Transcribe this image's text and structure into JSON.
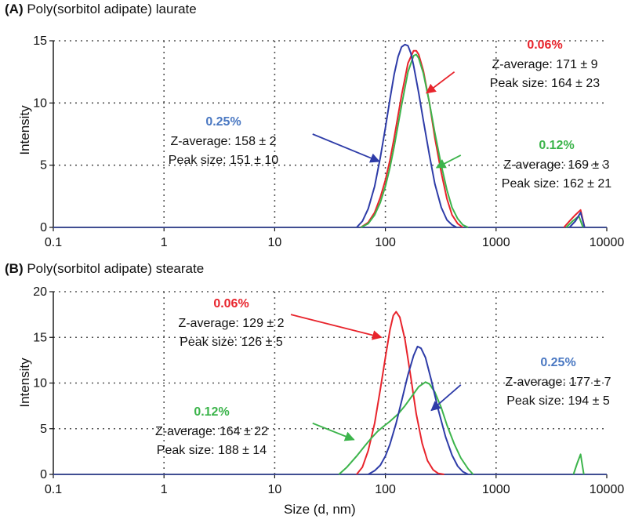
{
  "chart_data": [
    {
      "type": "line",
      "letter": "(A)",
      "title": "Poly(sorbitol adipate) laurate",
      "xlabel": "",
      "ylabel": "Intensity",
      "xscale": "log",
      "xlim": [
        0.1,
        10000
      ],
      "ylim": [
        0,
        15
      ],
      "xticks": [
        "0.1",
        "1",
        "10",
        "100",
        "1000",
        "10000"
      ],
      "yticks": [
        "0",
        "5",
        "10",
        "15"
      ],
      "grid": "dotted",
      "series": [
        {
          "name": "0.06%",
          "color": "#e8242c",
          "x": [
            60,
            70,
            80,
            90,
            100,
            110,
            120,
            140,
            160,
            180,
            190,
            200,
            220,
            250,
            280,
            320,
            360,
            400,
            450,
            500,
            4100,
            4600,
            5200,
            5800,
            6300
          ],
          "y": [
            0,
            0.4,
            1.2,
            2.4,
            3.8,
            5.4,
            7.2,
            10.6,
            13.2,
            14.2,
            14.2,
            13.9,
            12.6,
            10.0,
            7.2,
            4.4,
            2.3,
            1.0,
            0.3,
            0,
            0,
            0.5,
            1.0,
            1.4,
            0
          ]
        },
        {
          "name": "0.12%",
          "color": "#3cb44b",
          "x": [
            60,
            70,
            80,
            90,
            100,
            110,
            120,
            140,
            160,
            180,
            190,
            200,
            220,
            250,
            280,
            320,
            360,
            400,
            450,
            500,
            560,
            4300,
            4900,
            5600,
            6100
          ],
          "y": [
            0,
            0.3,
            1.0,
            2.0,
            3.3,
            4.8,
            6.5,
            9.8,
            12.5,
            13.8,
            13.9,
            13.6,
            12.4,
            10.0,
            7.6,
            5.0,
            3.0,
            1.6,
            0.7,
            0.2,
            0,
            0,
            0.5,
            0.9,
            0
          ]
        },
        {
          "name": "0.25%",
          "color": "#2e3ca8",
          "x": [
            55,
            62,
            70,
            80,
            90,
            100,
            110,
            120,
            130,
            140,
            150,
            160,
            170,
            180,
            200,
            220,
            250,
            280,
            320,
            360,
            400,
            440,
            4600,
            5200,
            5800,
            6300
          ],
          "y": [
            0,
            0.5,
            1.5,
            3.3,
            5.6,
            8.0,
            10.3,
            12.3,
            13.7,
            14.5,
            14.7,
            14.6,
            14.0,
            13.0,
            10.8,
            8.6,
            5.8,
            3.5,
            1.6,
            0.6,
            0.2,
            0,
            0,
            0.5,
            1.2,
            0
          ]
        }
      ],
      "annotations": [
        {
          "title": "0.06%",
          "color": "#e8242c",
          "lines": [
            "Z-average: 171 ± 9",
            "Peak size: 164 ± 23"
          ],
          "arrow_to_x": 235,
          "arrow_to_y": 10.8,
          "arrow_from_x": 420,
          "arrow_from_y": 12.5
        },
        {
          "title": "0.25%",
          "color": "#4a78c2",
          "arrow_color": "#2e3ca8",
          "lines": [
            "Z-average: 158 ± 2",
            "Peak size: 151 ± 10"
          ],
          "arrow_to_x": 88,
          "arrow_to_y": 5.3,
          "arrow_from_x": 22,
          "arrow_from_y": 7.5
        },
        {
          "title": "0.12%",
          "color": "#3cb44b",
          "lines": [
            "Z-average: 169 ± 3",
            "Peak size: 162 ± 21"
          ],
          "arrow_to_x": 290,
          "arrow_to_y": 4.8,
          "arrow_from_x": 480,
          "arrow_from_y": 5.8
        }
      ]
    },
    {
      "type": "line",
      "letter": "(B)",
      "title": "Poly(sorbitol adipate) stearate",
      "xlabel": "Size (d, nm)",
      "ylabel": "Intensity",
      "xscale": "log",
      "xlim": [
        0.1,
        10000
      ],
      "ylim": [
        0,
        20
      ],
      "xticks": [
        "0.1",
        "1",
        "10",
        "100",
        "1000",
        "10000"
      ],
      "yticks": [
        "0",
        "5",
        "10",
        "15",
        "20"
      ],
      "grid": "dotted",
      "series": [
        {
          "name": "0.06%",
          "color": "#e8242c",
          "x": [
            55,
            62,
            70,
            80,
            90,
            100,
            110,
            118,
            125,
            135,
            150,
            170,
            190,
            215,
            240,
            270,
            300,
            340
          ],
          "y": [
            0,
            0.8,
            2.6,
            5.6,
            9.3,
            12.8,
            15.8,
            17.4,
            17.8,
            17.2,
            14.8,
            10.6,
            6.6,
            3.4,
            1.5,
            0.5,
            0.1,
            0
          ]
        },
        {
          "name": "0.12%",
          "color": "#3cb44b",
          "x": [
            38,
            45,
            55,
            65,
            75,
            85,
            95,
            110,
            130,
            150,
            170,
            200,
            230,
            250,
            280,
            320,
            360,
            420,
            480,
            560,
            620,
            5000,
            5400,
            5800,
            6200
          ],
          "y": [
            0,
            0.8,
            2.0,
            3.1,
            4.0,
            4.7,
            5.2,
            5.8,
            6.6,
            7.5,
            8.4,
            9.6,
            10.1,
            9.9,
            9.0,
            7.3,
            5.4,
            3.3,
            1.8,
            0.6,
            0,
            0,
            1.2,
            2.2,
            0
          ]
        },
        {
          "name": "0.25%",
          "color": "#2e3ca8",
          "x": [
            70,
            80,
            90,
            100,
            110,
            125,
            140,
            160,
            180,
            195,
            210,
            230,
            260,
            300,
            350,
            400,
            450,
            500,
            560
          ],
          "y": [
            0,
            0.4,
            1.0,
            2.0,
            3.3,
            5.6,
            8.0,
            10.9,
            13.0,
            14.0,
            13.8,
            12.8,
            10.3,
            7.1,
            4.1,
            2.1,
            0.9,
            0.3,
            0
          ]
        }
      ],
      "annotations": [
        {
          "title": "0.06%",
          "color": "#e8242c",
          "lines": [
            "Z-average: 129 ± 2",
            "Peak size: 126 ± 5"
          ],
          "arrow_to_x": 92,
          "arrow_to_y": 15.0,
          "arrow_from_x": 14,
          "arrow_from_y": 17.5
        },
        {
          "title": "0.25%",
          "color": "#4a78c2",
          "arrow_color": "#2e3ca8",
          "lines": [
            "Z-average: 177 ± 7",
            "Peak size: 194 ± 5"
          ],
          "arrow_to_x": 260,
          "arrow_to_y": 7.0,
          "arrow_from_x": 480,
          "arrow_from_y": 9.8
        },
        {
          "title": "0.12%",
          "color": "#3cb44b",
          "lines": [
            "Z-average: 164 ± 22",
            "Peak size: 188 ± 14"
          ],
          "arrow_to_x": 52,
          "arrow_to_y": 3.8,
          "arrow_from_x": 22,
          "arrow_from_y": 5.6
        }
      ]
    }
  ]
}
